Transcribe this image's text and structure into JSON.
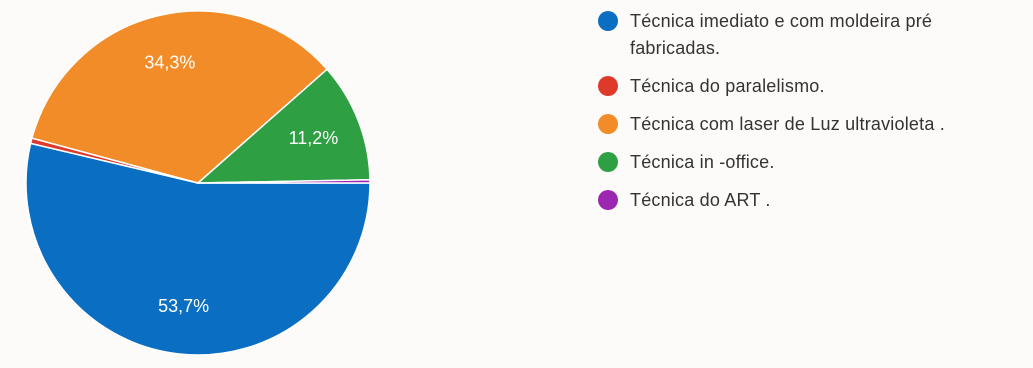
{
  "chart_data": {
    "type": "pie",
    "title": "",
    "slices": [
      {
        "name": "Técnica imediato e com moldeira pré fabricadas.",
        "value": 53.7,
        "label": "53,7%",
        "color": "#0a6fc2"
      },
      {
        "name": "Técnica do paralelismo.",
        "value": 0.5,
        "label": "",
        "color": "#dd3a2c"
      },
      {
        "name": "Técnica com laser de Luz ultravioleta .",
        "value": 34.3,
        "label": "34,3%",
        "color": "#f28c28"
      },
      {
        "name": "Técnica in -office.",
        "value": 11.2,
        "label": "11,2%",
        "color": "#2ea043"
      },
      {
        "name": "Técnica do ART .",
        "value": 0.3,
        "label": "",
        "color": "#9c27b0"
      }
    ],
    "legend_position": "right"
  }
}
